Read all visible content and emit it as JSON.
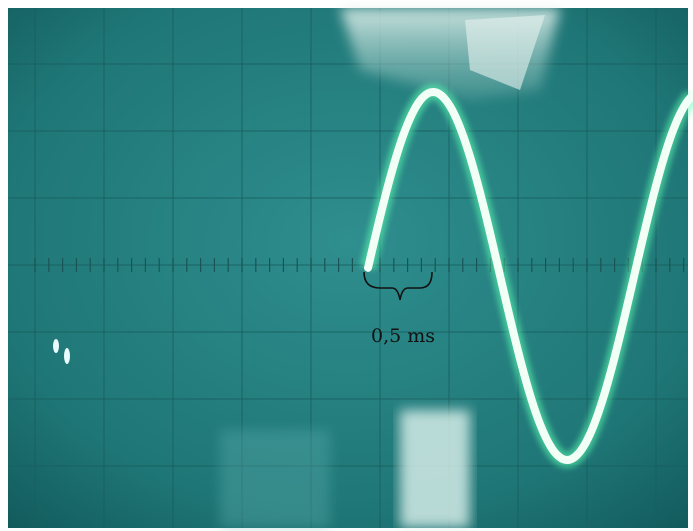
{
  "annotation": "0,5 ms"
}
